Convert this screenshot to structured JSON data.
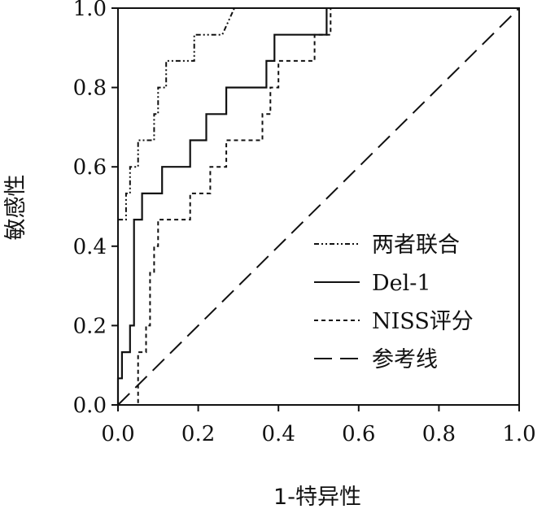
{
  "chart_data": {
    "type": "line",
    "xlabel": "1-特异性",
    "ylabel": "敏感性",
    "xlim": [
      0,
      1
    ],
    "ylim": [
      0,
      1
    ],
    "xticks": [
      "0.0",
      "0.2",
      "0.4",
      "0.6",
      "0.8",
      "1.0"
    ],
    "yticks": [
      "0.0",
      "0.2",
      "0.4",
      "0.6",
      "0.8",
      "1.0"
    ],
    "grid": false,
    "legend_position": "bottom-right",
    "series": [
      {
        "name": "两者联合",
        "style": "dash-dot-dot",
        "x": [
          0.0,
          0.0,
          0.0,
          0.0,
          0.02,
          0.02,
          0.03,
          0.03,
          0.05,
          0.05,
          0.07,
          0.07,
          0.09,
          0.09,
          0.1,
          0.1,
          0.12,
          0.12,
          0.16,
          0.16,
          0.18,
          0.18,
          0.19,
          0.19,
          0.2,
          0.2,
          0.2,
          0.2,
          0.23,
          0.23,
          0.26,
          0.26,
          0.29
        ],
        "y": [
          0.0,
          0.467,
          0.467,
          0.467,
          0.467,
          0.533,
          0.533,
          0.6,
          0.6,
          0.667,
          0.667,
          0.667,
          0.667,
          0.733,
          0.733,
          0.8,
          0.8,
          0.867,
          0.867,
          0.867,
          0.867,
          0.867,
          0.867,
          0.933,
          0.933,
          0.933,
          0.933,
          0.933,
          0.933,
          0.933,
          0.933,
          0.933,
          1.0
        ]
      },
      {
        "name": "Del-1",
        "style": "solid",
        "x": [
          0.0,
          0.0,
          0.01,
          0.01,
          0.03,
          0.03,
          0.04,
          0.04,
          0.04,
          0.04,
          0.05,
          0.05,
          0.06,
          0.06,
          0.11,
          0.11,
          0.18,
          0.18,
          0.22,
          0.22,
          0.27,
          0.27,
          0.37,
          0.37,
          0.38,
          0.38,
          0.39,
          0.39,
          0.5,
          0.5,
          0.52,
          0.52
        ],
        "y": [
          0.0,
          0.067,
          0.067,
          0.133,
          0.133,
          0.2,
          0.2,
          0.267,
          0.267,
          0.467,
          0.467,
          0.467,
          0.467,
          0.533,
          0.533,
          0.6,
          0.6,
          0.667,
          0.667,
          0.733,
          0.733,
          0.8,
          0.8,
          0.867,
          0.867,
          0.867,
          0.867,
          0.933,
          0.933,
          0.933,
          0.933,
          1.0
        ]
      },
      {
        "name": "NISS评分",
        "style": "dashed",
        "x": [
          0.0,
          0.0,
          0.0,
          0.0,
          0.05,
          0.05,
          0.06,
          0.06,
          0.07,
          0.07,
          0.08,
          0.08,
          0.09,
          0.09,
          0.1,
          0.1,
          0.12,
          0.12,
          0.18,
          0.18,
          0.2,
          0.2,
          0.23,
          0.23,
          0.24,
          0.24,
          0.25,
          0.25,
          0.27,
          0.27,
          0.29,
          0.29,
          0.36,
          0.36,
          0.38,
          0.38,
          0.39,
          0.39,
          0.4,
          0.4,
          0.42,
          0.42,
          0.49,
          0.49,
          0.53,
          0.53
        ],
        "y": [
          0.0,
          0.0,
          0.0,
          0.0,
          0.0,
          0.133,
          0.133,
          0.133,
          0.133,
          0.2,
          0.2,
          0.333,
          0.333,
          0.4,
          0.4,
          0.467,
          0.467,
          0.467,
          0.467,
          0.533,
          0.533,
          0.533,
          0.533,
          0.6,
          0.6,
          0.6,
          0.6,
          0.6,
          0.6,
          0.667,
          0.667,
          0.667,
          0.667,
          0.733,
          0.733,
          0.8,
          0.8,
          0.8,
          0.8,
          0.867,
          0.867,
          0.867,
          0.867,
          0.933,
          0.933,
          1.0
        ]
      },
      {
        "name": "参考线",
        "style": "long-dash",
        "x": [
          0,
          1
        ],
        "y": [
          0,
          1
        ]
      }
    ]
  }
}
